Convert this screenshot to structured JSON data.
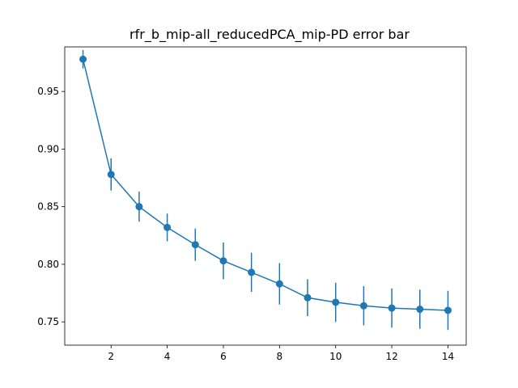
{
  "chart_data": {
    "type": "line",
    "title": "rfr_b_mip-all_reducedPCA_mip-PD error bar",
    "xlabel": "",
    "ylabel": "",
    "xlim": [
      0.35,
      14.65
    ],
    "ylim": [
      0.7298,
      0.9887
    ],
    "x_ticks": [
      2,
      4,
      6,
      8,
      10,
      12,
      14
    ],
    "x_tick_labels": [
      "2",
      "4",
      "6",
      "8",
      "10",
      "12",
      "14"
    ],
    "y_ticks": [
      0.75,
      0.8,
      0.85,
      0.9,
      0.95
    ],
    "y_tick_labels": [
      "0.75",
      "0.80",
      "0.85",
      "0.90",
      "0.95"
    ],
    "grid": false,
    "series": [
      {
        "color": "#1f77b4",
        "marker": "circle",
        "x": [
          1,
          2,
          3,
          4,
          5,
          6,
          7,
          8,
          9,
          10,
          11,
          12,
          13,
          14
        ],
        "y": [
          0.978,
          0.878,
          0.85,
          0.832,
          0.817,
          0.803,
          0.793,
          0.783,
          0.771,
          0.767,
          0.764,
          0.762,
          0.761,
          0.76
        ],
        "error": [
          0.008,
          0.014,
          0.013,
          0.012,
          0.014,
          0.016,
          0.017,
          0.018,
          0.016,
          0.017,
          0.017,
          0.017,
          0.017,
          0.017
        ]
      }
    ]
  }
}
